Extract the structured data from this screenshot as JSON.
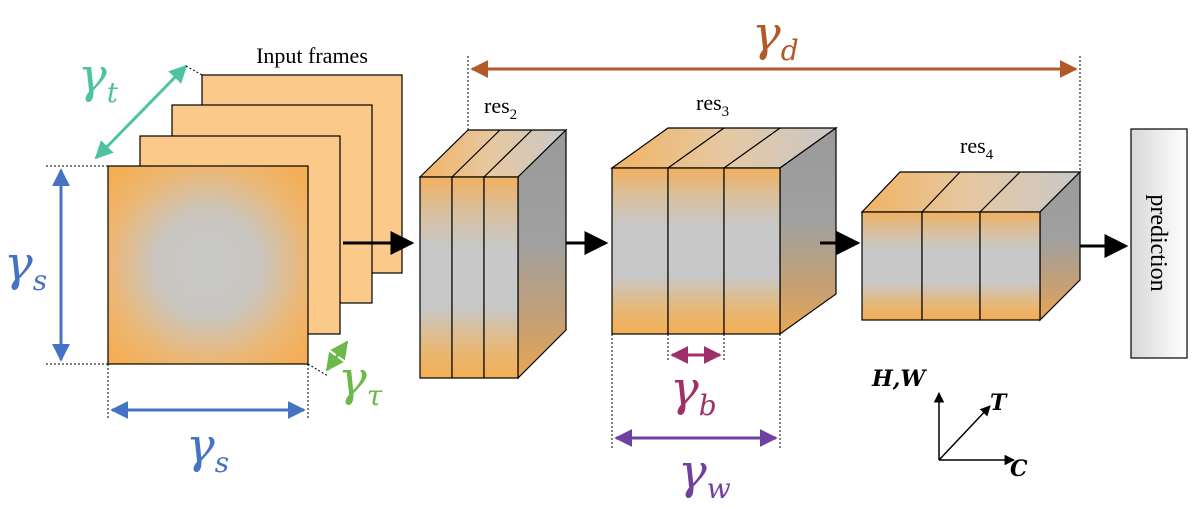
{
  "labels": {
    "input_frames": "Input frames",
    "res2_base": "res",
    "res2_sub": "2",
    "res3_base": "res",
    "res3_sub": "3",
    "res4_base": "res",
    "res4_sub": "4",
    "prediction": "prediction",
    "axis_hw": "H,W",
    "axis_t": "T",
    "axis_c": "C"
  },
  "params": {
    "gamma": "γ",
    "t": "t",
    "s": "s",
    "tau": "τ",
    "d": "d",
    "b": "b",
    "w": "w"
  },
  "colors": {
    "orange": "#f4b460",
    "orange_light": "#fbc98a",
    "gray": "#c8c8c8",
    "gray_dark": "#9a9a9a",
    "teal": "#4fc3a1",
    "blue": "#4472c4",
    "green": "#6cb84a",
    "brown": "#b05a2a",
    "magenta": "#a0306a",
    "purple": "#7040a0"
  }
}
